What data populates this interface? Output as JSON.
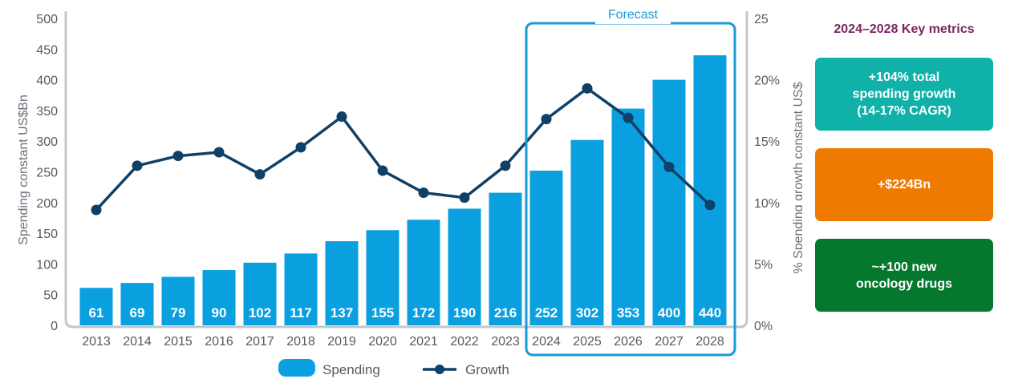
{
  "chart_data": {
    "type": "bar",
    "categories": [
      "2013",
      "2014",
      "2015",
      "2016",
      "2017",
      "2018",
      "2019",
      "2020",
      "2021",
      "2022",
      "2023",
      "2024",
      "2025",
      "2026",
      "2027",
      "2028"
    ],
    "series": [
      {
        "name": "Spending",
        "type": "bar",
        "axis": "left",
        "color": "#0aa0e0",
        "values": [
          61,
          69,
          79,
          90,
          102,
          117,
          137,
          155,
          172,
          190,
          216,
          252,
          302,
          353,
          400,
          440
        ]
      },
      {
        "name": "Growth",
        "type": "line",
        "axis": "right",
        "color": "#0e4068",
        "values": [
          9.4,
          13.0,
          13.8,
          14.1,
          12.3,
          14.5,
          17.0,
          12.6,
          10.8,
          10.4,
          13.0,
          16.8,
          19.3,
          16.9,
          12.9,
          9.8
        ]
      }
    ],
    "ylabel": "Spending constant US$Bn",
    "y2label": "% Spending growth constant US$",
    "ylim": [
      0,
      500
    ],
    "y2lim": [
      0,
      25
    ],
    "yticks": [
      "0",
      "50",
      "100",
      "150",
      "200",
      "250",
      "300",
      "350",
      "400",
      "450",
      "500"
    ],
    "y2ticks": [
      "0%",
      "5%",
      "10%",
      "15%",
      "20%",
      "25"
    ],
    "forecast": {
      "label": "Forecast",
      "start": "2024",
      "end": "2028"
    },
    "legend": [
      "Spending",
      "Growth"
    ],
    "grid": false
  },
  "metrics": {
    "title": "2024–2028 Key metrics",
    "cards": [
      {
        "lines": [
          "+104% total",
          "spending growth",
          "(14-17% CAGR)"
        ],
        "color": "#0fb1a9"
      },
      {
        "lines": [
          "+$224Bn"
        ],
        "color": "#ee7b00"
      },
      {
        "lines": [
          "~+100 new",
          "oncology drugs"
        ],
        "color": "#05782e"
      }
    ]
  }
}
